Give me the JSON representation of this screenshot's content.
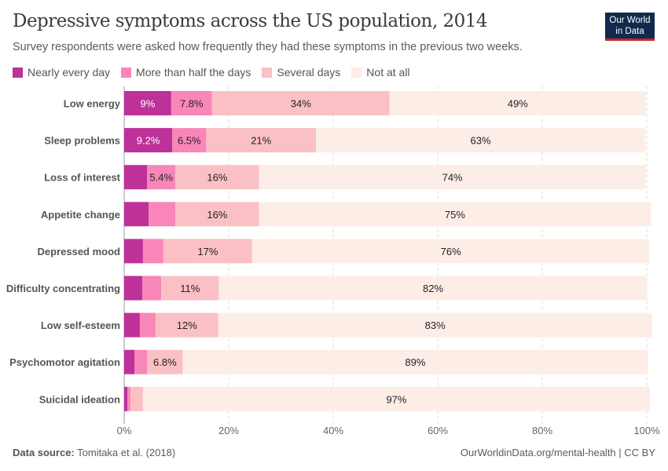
{
  "header": {
    "title": "Depressive symptoms across the US population, 2014",
    "subtitle": "Survey respondents were asked how frequently they had these symptoms in the previous two weeks.",
    "logo": "Our World in Data"
  },
  "footer": {
    "source_label": "Data source:",
    "source": "Tomitaka et al. (2018)",
    "link": "OurWorldinData.org/mental-health | CC BY"
  },
  "chart_data": {
    "type": "bar",
    "orientation": "horizontal",
    "stacked": true,
    "xlim": [
      0,
      100
    ],
    "x_ticks": [
      "0%",
      "20%",
      "40%",
      "60%",
      "80%",
      "100%"
    ],
    "grid": true,
    "legend": "top-left",
    "series": [
      {
        "name": "Nearly every day",
        "color": "#bd3199"
      },
      {
        "name": "More than half the days",
        "color": "#f986b8"
      },
      {
        "name": "Several days",
        "color": "#fbc0c5"
      },
      {
        "name": "Not at all",
        "color": "#fdede7"
      }
    ],
    "categories": [
      "Low energy",
      "Sleep problems",
      "Loss of interest",
      "Appetite change",
      "Depressed mood",
      "Difficulty concentrating",
      "Low self-esteem",
      "Psychomotor agitation",
      "Suicidal ideation"
    ],
    "values": [
      [
        9,
        7.8,
        34,
        49
      ],
      [
        9.2,
        6.5,
        21,
        63
      ],
      [
        4.4,
        5.4,
        16,
        74
      ],
      [
        4.7,
        5.1,
        16,
        75
      ],
      [
        3.6,
        3.9,
        17,
        76
      ],
      [
        3.5,
        3.6,
        11,
        82
      ],
      [
        3.0,
        3.0,
        12,
        83
      ],
      [
        2.0,
        2.4,
        6.8,
        89
      ],
      [
        0.6,
        0.6,
        2.4,
        97
      ]
    ],
    "data_labels": [
      [
        "9%",
        "7.8%",
        "34%",
        "49%"
      ],
      [
        "9.2%",
        "6.5%",
        "21%",
        "63%"
      ],
      [
        null,
        "5.4%",
        "16%",
        "74%"
      ],
      [
        null,
        null,
        "16%",
        "75%"
      ],
      [
        null,
        null,
        "17%",
        "76%"
      ],
      [
        null,
        null,
        "11%",
        "82%"
      ],
      [
        null,
        null,
        "12%",
        "83%"
      ],
      [
        null,
        null,
        "6.8%",
        "89%"
      ],
      [
        null,
        null,
        null,
        "97%"
      ]
    ]
  }
}
